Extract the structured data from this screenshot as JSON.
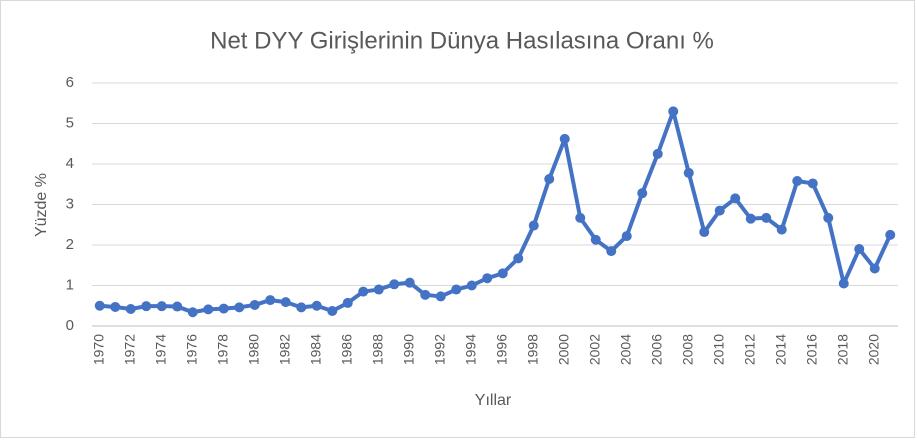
{
  "chart_data": {
    "type": "line",
    "title": "Net DYY Girişlerinin Dünya Hasılasına Oranı %",
    "x_label": "Yıllar",
    "y_label": "Yüzde %",
    "categories": [
      "1970",
      null,
      "1972",
      null,
      "1974",
      null,
      "1976",
      null,
      "1978",
      null,
      "1980",
      null,
      "1982",
      null,
      "1984",
      null,
      "1986",
      null,
      "1988",
      null,
      "1990",
      null,
      "1992",
      null,
      "1994",
      null,
      "1996",
      null,
      "1998",
      null,
      "2000",
      null,
      "2002",
      null,
      "2004",
      null,
      "2006",
      null,
      "2008",
      null,
      "2010",
      null,
      "2012",
      null,
      "2014",
      null,
      "2016",
      null,
      "2018",
      null,
      "2020",
      null
    ],
    "series": [
      {
        "name": "Net DYY Girişlerinin Dünya Hasılasına Oranı %",
        "color": "#4472c4",
        "values": [
          0.5,
          0.47,
          0.42,
          0.49,
          0.49,
          0.48,
          0.34,
          0.41,
          0.43,
          0.46,
          0.52,
          0.64,
          0.59,
          0.46,
          0.5,
          0.37,
          0.57,
          0.85,
          0.9,
          1.03,
          1.07,
          0.77,
          0.73,
          0.9,
          1.0,
          1.18,
          1.3,
          1.67,
          2.48,
          3.63,
          4.62,
          2.67,
          2.13,
          1.85,
          2.22,
          3.28,
          4.25,
          5.3,
          3.78,
          2.32,
          2.85,
          3.15,
          2.65,
          2.67,
          2.38,
          3.58,
          3.52,
          2.67,
          1.05,
          1.9,
          1.42,
          2.25
        ]
      }
    ],
    "ylim": [
      0,
      6
    ],
    "yticks": [
      0,
      1,
      2,
      3,
      4,
      5,
      6
    ],
    "grid": true
  }
}
